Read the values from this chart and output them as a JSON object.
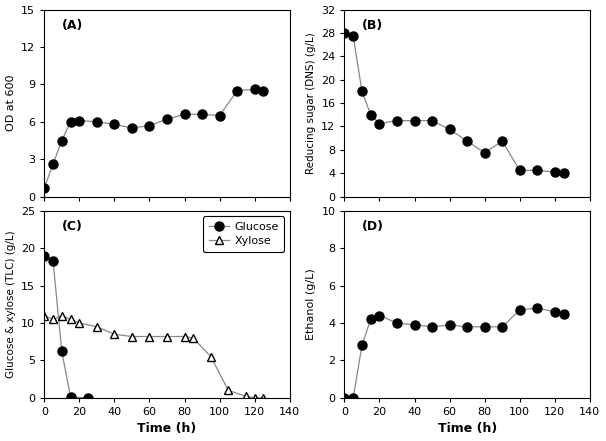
{
  "A": {
    "time": [
      0,
      5,
      10,
      15,
      20,
      30,
      40,
      50,
      60,
      70,
      80,
      90,
      100,
      110,
      120,
      125
    ],
    "od": [
      0.7,
      2.6,
      4.5,
      6.0,
      6.1,
      6.0,
      5.8,
      5.5,
      5.7,
      6.2,
      6.6,
      6.6,
      6.5,
      8.5,
      8.6,
      8.5
    ],
    "ylabel": "OD at 600",
    "ylim": [
      0,
      15
    ],
    "yticks": [
      0,
      3,
      6,
      9,
      12,
      15
    ],
    "label": "(A)"
  },
  "B": {
    "time": [
      0,
      5,
      10,
      15,
      20,
      30,
      40,
      50,
      60,
      70,
      80,
      90,
      100,
      110,
      120,
      125
    ],
    "rs": [
      28.0,
      27.5,
      18.0,
      14.0,
      12.5,
      13.0,
      13.0,
      13.0,
      11.5,
      9.5,
      7.5,
      9.5,
      4.5,
      4.5,
      4.2,
      4.1
    ],
    "ylabel": "Reducing sugar (DNS) (g/L)",
    "ylim": [
      0,
      32
    ],
    "yticks": [
      0,
      4,
      8,
      12,
      16,
      20,
      24,
      28,
      32
    ],
    "label": "(B)"
  },
  "C": {
    "glucose_time": [
      0,
      5,
      10,
      15,
      25
    ],
    "glucose": [
      19.0,
      18.3,
      6.2,
      0.1,
      0.0
    ],
    "xylose_time": [
      0,
      5,
      10,
      15,
      20,
      30,
      40,
      50,
      60,
      70,
      80,
      85,
      95,
      105,
      115,
      120,
      125
    ],
    "xylose": [
      11.0,
      10.5,
      11.0,
      10.5,
      10.0,
      9.5,
      8.5,
      8.2,
      8.2,
      8.2,
      8.2,
      8.0,
      5.5,
      1.0,
      0.2,
      0.0,
      0.0
    ],
    "ylabel": "Glucose & xylose (TLC) (g/L)",
    "ylim": [
      0,
      25
    ],
    "yticks": [
      0,
      5,
      10,
      15,
      20,
      25
    ],
    "label": "(C)"
  },
  "D": {
    "time": [
      0,
      5,
      10,
      15,
      20,
      30,
      40,
      50,
      60,
      70,
      80,
      90,
      100,
      110,
      120,
      125
    ],
    "ethanol": [
      0.0,
      0.0,
      2.8,
      4.2,
      4.4,
      4.0,
      3.9,
      3.8,
      3.9,
      3.8,
      3.8,
      3.8,
      4.7,
      4.8,
      4.6,
      4.5
    ],
    "ylabel": "Ethanol (g/L)",
    "ylim": [
      0,
      10
    ],
    "yticks": [
      0,
      2,
      4,
      6,
      8,
      10
    ],
    "label": "(D)"
  },
  "xlabel": "Time (h)",
  "xlim": [
    0,
    140
  ],
  "xticks": [
    0,
    20,
    40,
    60,
    80,
    100,
    120,
    140
  ],
  "marker_color": "black",
  "line_color": "#888888",
  "bg_color": "white"
}
